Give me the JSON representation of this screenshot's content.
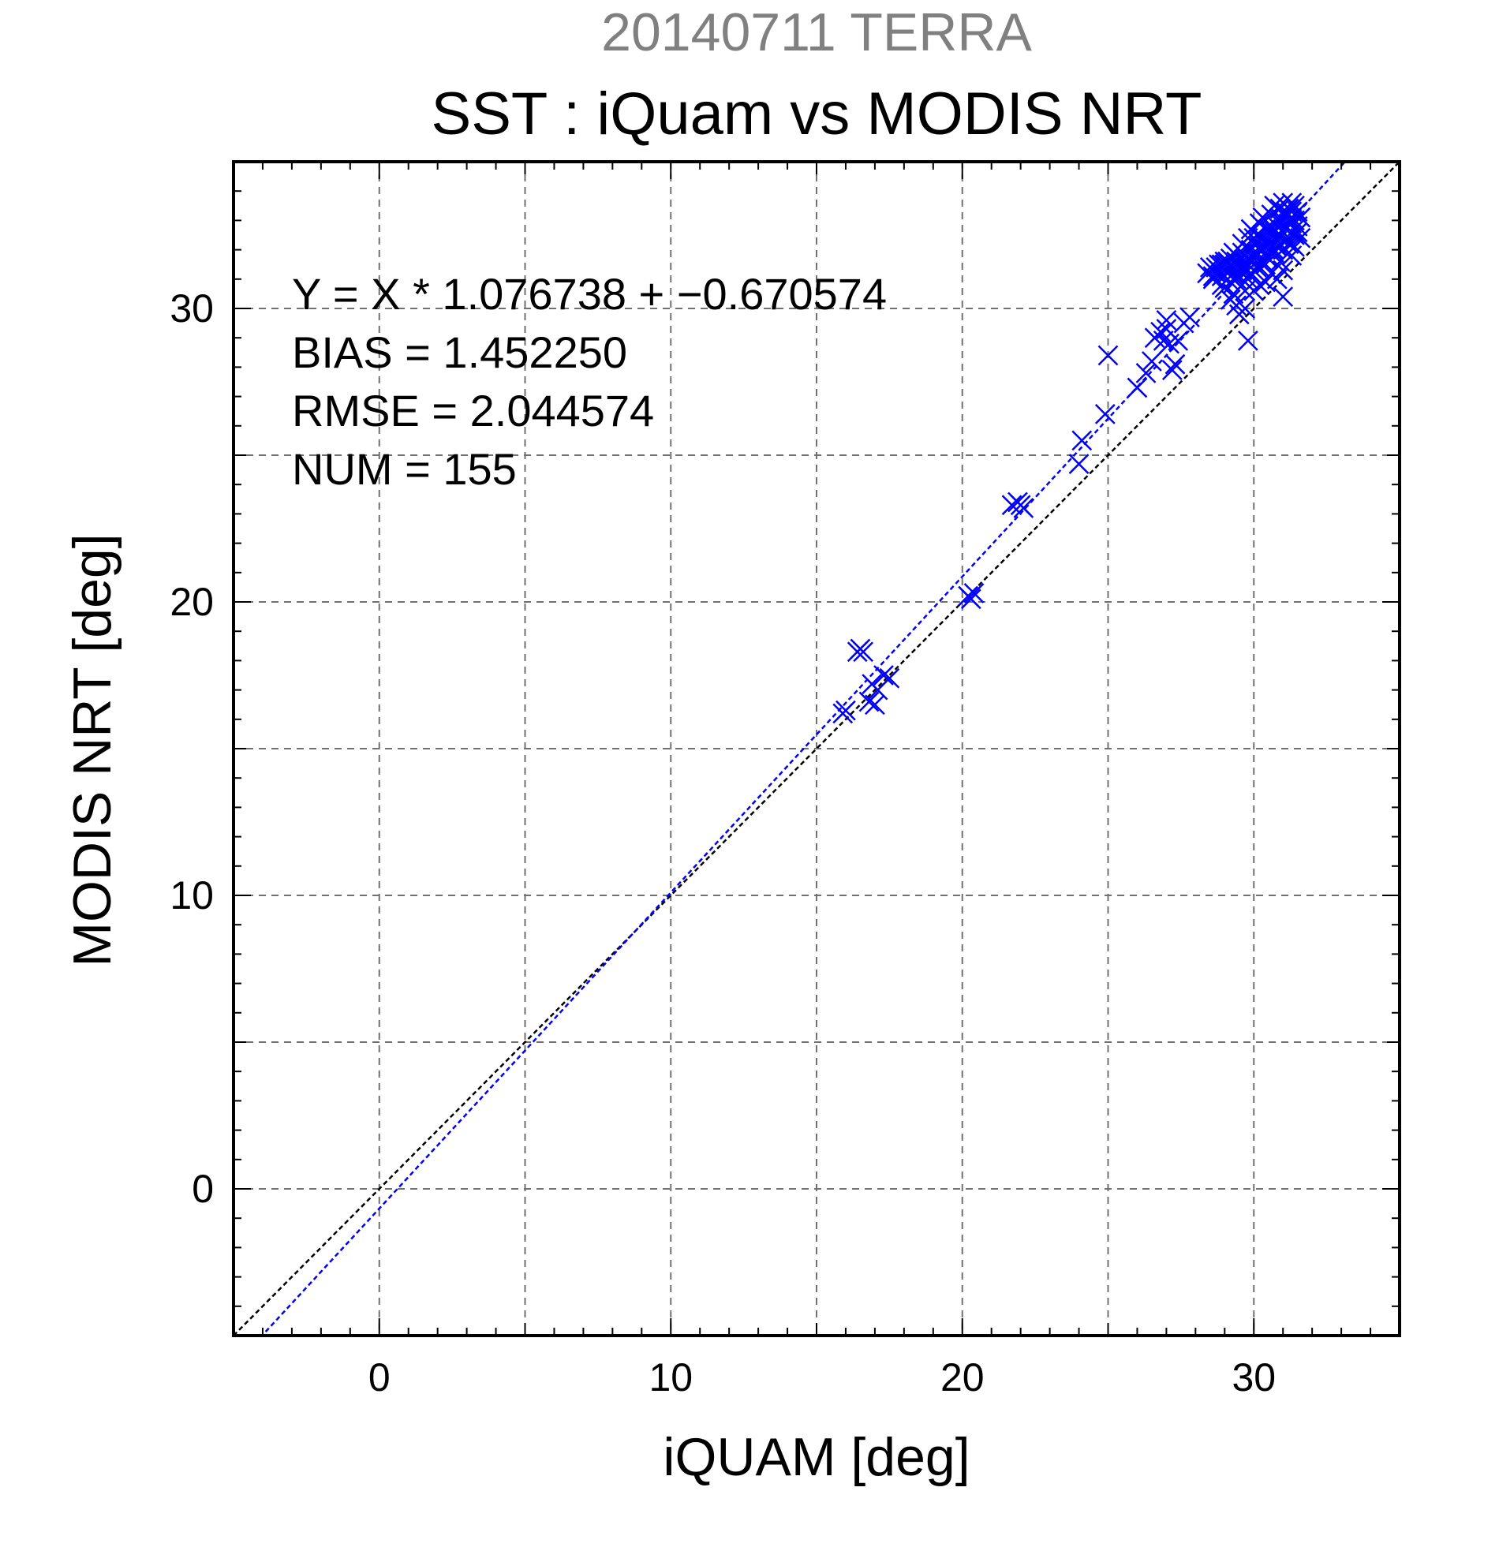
{
  "chart_data": {
    "type": "scatter",
    "supertitle": "20140711 TERRA",
    "title": "SST : iQuam vs MODIS NRT",
    "xlabel": "iQUAM [deg]",
    "ylabel": "MODIS NRT [deg]",
    "xlim": [
      -5,
      35
    ],
    "ylim": [
      -5,
      35
    ],
    "xticks": [
      0,
      10,
      20,
      30
    ],
    "yticks": [
      0,
      10,
      20,
      30
    ],
    "grid": true,
    "grid_step": 5,
    "marker": "x",
    "stats": [
      "Y = X * 1.076738 + −0.670574",
      "BIAS = 1.452250",
      "RMSE = 2.044574",
      "NUM = 155"
    ],
    "regression": {
      "slope": 1.076738,
      "intercept": -0.670574,
      "color": "#0000ff"
    },
    "identity_line": {
      "color": "#000000"
    },
    "series": [
      {
        "color": "#0000ff",
        "points": [
          [
            16.4,
            18.3
          ],
          [
            16.5,
            18.4
          ],
          [
            16.6,
            18.3
          ],
          [
            15.9,
            16.2
          ],
          [
            16.0,
            16.3
          ],
          [
            16.8,
            16.6
          ],
          [
            17.0,
            16.5
          ],
          [
            16.9,
            17.2
          ],
          [
            17.1,
            17.0
          ],
          [
            17.3,
            17.5
          ],
          [
            17.5,
            17.4
          ],
          [
            20.2,
            20.2
          ],
          [
            20.3,
            20.1
          ],
          [
            20.4,
            20.3
          ],
          [
            21.7,
            23.3
          ],
          [
            21.9,
            23.4
          ],
          [
            22.1,
            23.2
          ],
          [
            22.0,
            23.3
          ],
          [
            24.0,
            24.7
          ],
          [
            24.1,
            25.5
          ],
          [
            24.9,
            26.4
          ],
          [
            25.0,
            28.4
          ],
          [
            26.0,
            27.3
          ],
          [
            26.3,
            27.8
          ],
          [
            26.5,
            28.2
          ],
          [
            26.6,
            29.0
          ],
          [
            26.8,
            29.2
          ],
          [
            26.9,
            28.9
          ],
          [
            27.0,
            29.3
          ],
          [
            27.0,
            29.6
          ],
          [
            27.1,
            28.8
          ],
          [
            27.3,
            28.1
          ],
          [
            27.2,
            27.9
          ],
          [
            27.4,
            28.9
          ],
          [
            27.6,
            29.5
          ],
          [
            27.8,
            29.7
          ],
          [
            28.4,
            31.2
          ],
          [
            28.6,
            31.0
          ],
          [
            28.7,
            31.4
          ],
          [
            28.8,
            31.3
          ],
          [
            28.9,
            30.8
          ],
          [
            29.0,
            31.5
          ],
          [
            29.1,
            31.2
          ],
          [
            29.2,
            30.9
          ],
          [
            29.3,
            31.4
          ],
          [
            29.4,
            31.6
          ],
          [
            29.5,
            31.1
          ],
          [
            29.6,
            31.3
          ],
          [
            29.7,
            31.8
          ],
          [
            29.8,
            31.5
          ],
          [
            29.9,
            31.2
          ],
          [
            30.0,
            31.7
          ],
          [
            30.1,
            31.9
          ],
          [
            30.2,
            32.1
          ],
          [
            30.3,
            31.6
          ],
          [
            30.4,
            31.8
          ],
          [
            30.5,
            32.3
          ],
          [
            30.6,
            32.5
          ],
          [
            30.7,
            32.0
          ],
          [
            30.8,
            32.8
          ],
          [
            30.9,
            33.0
          ],
          [
            31.0,
            32.6
          ],
          [
            31.1,
            33.2
          ],
          [
            31.2,
            33.4
          ],
          [
            31.3,
            32.9
          ],
          [
            31.4,
            33.0
          ],
          [
            30.0,
            32.4
          ],
          [
            29.6,
            32.2
          ],
          [
            29.9,
            32.7
          ],
          [
            30.3,
            33.1
          ],
          [
            30.7,
            33.5
          ],
          [
            31.0,
            33.6
          ],
          [
            31.2,
            32.2
          ],
          [
            31.3,
            31.8
          ],
          [
            31.4,
            32.5
          ],
          [
            31.0,
            31.3
          ],
          [
            30.8,
            31.0
          ],
          [
            30.6,
            31.2
          ],
          [
            30.4,
            30.9
          ],
          [
            30.2,
            30.8
          ],
          [
            30.0,
            30.6
          ],
          [
            29.8,
            31.0
          ],
          [
            29.7,
            30.6
          ],
          [
            29.4,
            30.1
          ],
          [
            29.5,
            29.8
          ],
          [
            29.7,
            30.0
          ],
          [
            29.8,
            28.9
          ],
          [
            29.3,
            30.5
          ],
          [
            29.2,
            30.3
          ],
          [
            29.0,
            30.7
          ],
          [
            28.9,
            31.5
          ],
          [
            29.1,
            31.6
          ],
          [
            29.3,
            31.9
          ],
          [
            29.5,
            31.7
          ],
          [
            29.6,
            31.9
          ],
          [
            29.9,
            32.0
          ],
          [
            30.1,
            32.3
          ],
          [
            30.3,
            32.4
          ],
          [
            30.5,
            32.0
          ],
          [
            30.6,
            32.6
          ],
          [
            30.8,
            32.3
          ],
          [
            30.9,
            32.5
          ],
          [
            31.1,
            32.7
          ],
          [
            31.2,
            32.9
          ],
          [
            31.3,
            33.3
          ],
          [
            31.4,
            33.5
          ],
          [
            31.6,
            32.4
          ],
          [
            31.5,
            32.8
          ],
          [
            30.9,
            31.6
          ],
          [
            31.0,
            30.4
          ],
          [
            30.4,
            31.5
          ],
          [
            30.1,
            31.4
          ],
          [
            29.9,
            31.6
          ],
          [
            29.6,
            31.4
          ],
          [
            29.4,
            31.0
          ],
          [
            29.2,
            31.5
          ],
          [
            28.9,
            31.1
          ],
          [
            28.7,
            31.2
          ],
          [
            28.5,
            31.4
          ],
          [
            28.6,
            31.1
          ],
          [
            29.0,
            31.3
          ],
          [
            29.3,
            31.2
          ],
          [
            29.5,
            31.5
          ],
          [
            29.8,
            31.3
          ],
          [
            30.2,
            31.4
          ],
          [
            30.5,
            31.7
          ],
          [
            30.7,
            31.9
          ],
          [
            31.0,
            32.0
          ],
          [
            31.3,
            32.2
          ],
          [
            31.5,
            32.6
          ],
          [
            31.4,
            32.1
          ],
          [
            31.1,
            32.3
          ],
          [
            30.8,
            32.1
          ],
          [
            30.5,
            32.2
          ],
          [
            30.3,
            32.0
          ],
          [
            30.0,
            31.8
          ],
          [
            29.7,
            31.6
          ],
          [
            29.4,
            31.8
          ],
          [
            29.2,
            31.7
          ],
          [
            29.0,
            31.6
          ],
          [
            28.8,
            31.5
          ],
          [
            30.6,
            32.8
          ],
          [
            30.9,
            33.1
          ],
          [
            31.1,
            33.3
          ],
          [
            31.2,
            33.0
          ],
          [
            30.7,
            32.6
          ],
          [
            30.4,
            32.7
          ],
          [
            30.1,
            32.5
          ],
          [
            29.8,
            32.4
          ],
          [
            30.2,
            32.9
          ],
          [
            30.6,
            33.2
          ],
          [
            30.9,
            33.4
          ],
          [
            31.3,
            33.6
          ],
          [
            31.5,
            33.3
          ],
          [
            31.6,
            33.1
          ]
        ]
      }
    ]
  }
}
